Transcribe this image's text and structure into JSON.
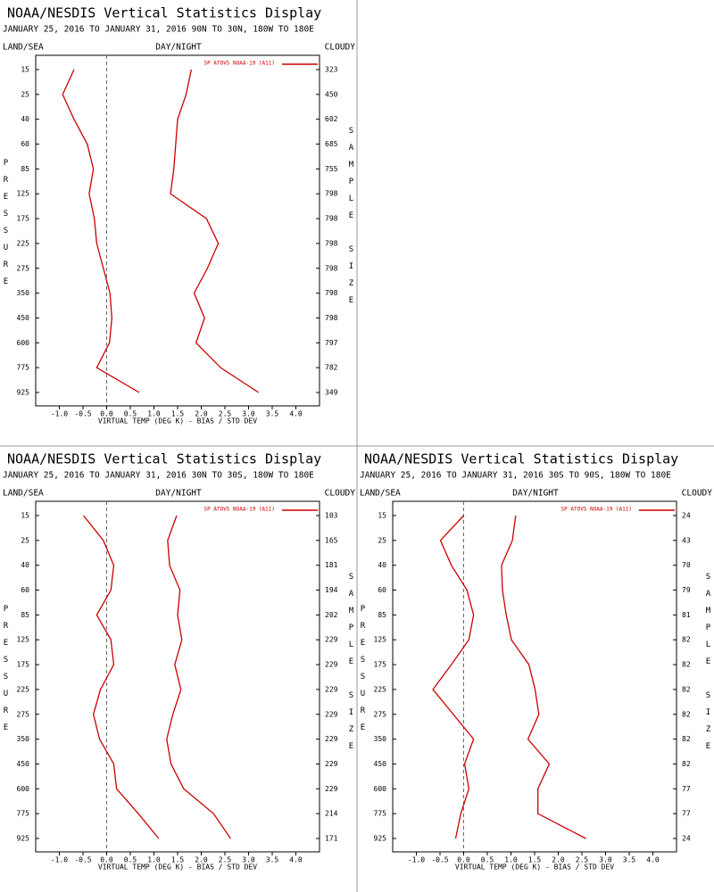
{
  "chart_data": [
    {
      "type": "line",
      "title": "NOAA/NESDIS Vertical Statistics Display",
      "subtitle": "JANUARY 25, 2016 TO JANUARY 31, 2016  90N TO 30N, 180W TO 180E",
      "land_sea": "LAND/SEA",
      "day_night": "DAY/NIGHT",
      "cloudy": "CLOUDY",
      "y_label": "PRESSURE",
      "y2_label": "SAMPLE SIZE",
      "x_label": "VIRTUAL TEMP (DEG K) - BIAS / STD DEV",
      "categories": [
        15,
        25,
        40,
        60,
        85,
        125,
        175,
        225,
        275,
        350,
        450,
        600,
        775,
        925
      ],
      "sample_size": [
        323,
        450,
        602,
        685,
        755,
        798,
        798,
        798,
        798,
        798,
        798,
        797,
        782,
        349
      ],
      "series": [
        {
          "name": "SP ATOVS NOAA-19 (A11)",
          "color": "#cc0000",
          "values": [
            -0.69,
            -0.93,
            -0.69,
            -0.41,
            -0.28,
            -0.37,
            -0.26,
            -0.21,
            -0.07,
            0.07,
            0.11,
            0.06,
            -0.21,
            0.69
          ]
        },
        {
          "color": "#cc0000",
          "values": [
            1.79,
            1.68,
            1.5,
            1.46,
            1.42,
            1.35,
            2.11,
            2.36,
            2.13,
            1.85,
            2.07,
            1.89,
            2.41,
            3.21
          ]
        }
      ],
      "xlim": [
        -1.5,
        4.5
      ],
      "xticks": [
        {
          "value": -1,
          "label": "-1.0"
        },
        {
          "value": -0.5,
          "label": "-0.5"
        },
        {
          "value": 0,
          "label": "0.0"
        },
        {
          "value": 0.5,
          "label": "0.5"
        },
        {
          "value": 1,
          "label": "1.0"
        },
        {
          "value": 1.5,
          "label": "1.5"
        },
        {
          "value": 2,
          "label": "2.0"
        },
        {
          "value": 2.5,
          "label": "2.5"
        },
        {
          "value": 3,
          "label": "3.0"
        },
        {
          "value": 3.5,
          "label": "3.5"
        },
        {
          "value": 4,
          "label": "4.0"
        }
      ]
    },
    {
      "type": "line",
      "title": "NOAA/NESDIS Vertical Statistics Display",
      "subtitle": "JANUARY 25, 2016 TO JANUARY 31, 2016  30N TO 30S, 180W TO 180E",
      "land_sea": "LAND/SEA",
      "day_night": "DAY/NIGHT",
      "cloudy": "CLOUDY",
      "y_label": "PRESSURE",
      "y2_label": "SAMPLE SIZE",
      "x_label": "VIRTUAL TEMP (DEG K) - BIAS / STD DEV",
      "categories": [
        15,
        25,
        40,
        60,
        85,
        125,
        175,
        225,
        275,
        350,
        450,
        600,
        775,
        925
      ],
      "sample_size": [
        103,
        165,
        181,
        194,
        202,
        229,
        229,
        229,
        229,
        229,
        229,
        229,
        214,
        171
      ],
      "series": [
        {
          "name": "SP ATOVS NOAA-19 (A11)",
          "color": "#cc0000",
          "values": [
            -0.49,
            -0.07,
            0.15,
            0.09,
            -0.21,
            0.09,
            0.15,
            -0.13,
            -0.28,
            -0.15,
            0.15,
            0.21,
            0.67,
            1.1
          ]
        },
        {
          "color": "#cc0000",
          "values": [
            1.48,
            1.29,
            1.33,
            1.55,
            1.5,
            1.59,
            1.44,
            1.57,
            1.4,
            1.27,
            1.36,
            1.63,
            2.26,
            2.62
          ]
        }
      ],
      "xlim": [
        -1.5,
        4.5
      ],
      "xticks": [
        {
          "value": -1,
          "label": "-1.0"
        },
        {
          "value": -0.5,
          "label": "-0.5"
        },
        {
          "value": 0,
          "label": "0.0"
        },
        {
          "value": 0.5,
          "label": "0.5"
        },
        {
          "value": 1,
          "label": "1.0"
        },
        {
          "value": 1.5,
          "label": "1.5"
        },
        {
          "value": 2,
          "label": "2.0"
        },
        {
          "value": 2.5,
          "label": "2.5"
        },
        {
          "value": 3,
          "label": "3.0"
        },
        {
          "value": 3.5,
          "label": "3.5"
        },
        {
          "value": 4,
          "label": "4.0"
        }
      ]
    },
    {
      "type": "line",
      "title": "NOAA/NESDIS Vertical Statistics Display",
      "subtitle": "JANUARY 25, 2016 TO JANUARY 31, 2016  30S TO 90S, 180W TO 180E",
      "land_sea": "LAND/SEA",
      "day_night": "DAY/NIGHT",
      "cloudy": "CLOUDY",
      "y_label": "PRESSURE",
      "y2_label": "SAMPLE SIZE",
      "x_label": "VIRTUAL TEMP (DEG K) - BIAS / STD DEV",
      "categories": [
        15,
        25,
        40,
        60,
        85,
        125,
        175,
        225,
        275,
        350,
        450,
        600,
        775,
        925
      ],
      "sample_size": [
        24,
        43,
        70,
        79,
        81,
        82,
        82,
        82,
        82,
        82,
        82,
        77,
        77,
        24
      ],
      "series": [
        {
          "name": "SP ATOVS NOAA-19 (A11)",
          "color": "#cc0000",
          "values": [
            0.0,
            -0.49,
            -0.26,
            0.07,
            0.21,
            0.11,
            -0.26,
            -0.65,
            -0.22,
            0.21,
            0.02,
            0.11,
            -0.06,
            -0.17
          ]
        },
        {
          "color": "#cc0000",
          "values": [
            1.1,
            1.03,
            0.8,
            0.82,
            0.9,
            1.01,
            1.38,
            1.51,
            1.59,
            1.36,
            1.81,
            1.57,
            1.57,
            2.58
          ]
        }
      ],
      "xlim": [
        -1.5,
        4.5
      ],
      "xticks": [
        {
          "value": -1,
          "label": "-1.0"
        },
        {
          "value": -0.5,
          "label": "-0.5"
        },
        {
          "value": 0,
          "label": "0.0"
        },
        {
          "value": 0.5,
          "label": "0.5"
        },
        {
          "value": 1,
          "label": "1.0"
        },
        {
          "value": 1.5,
          "label": "1.5"
        },
        {
          "value": 2,
          "label": "2.0"
        },
        {
          "value": 2.5,
          "label": "2.5"
        },
        {
          "value": 3,
          "label": "3.0"
        },
        {
          "value": 3.5,
          "label": "3.5"
        },
        {
          "value": 4,
          "label": "4.0"
        }
      ]
    }
  ]
}
